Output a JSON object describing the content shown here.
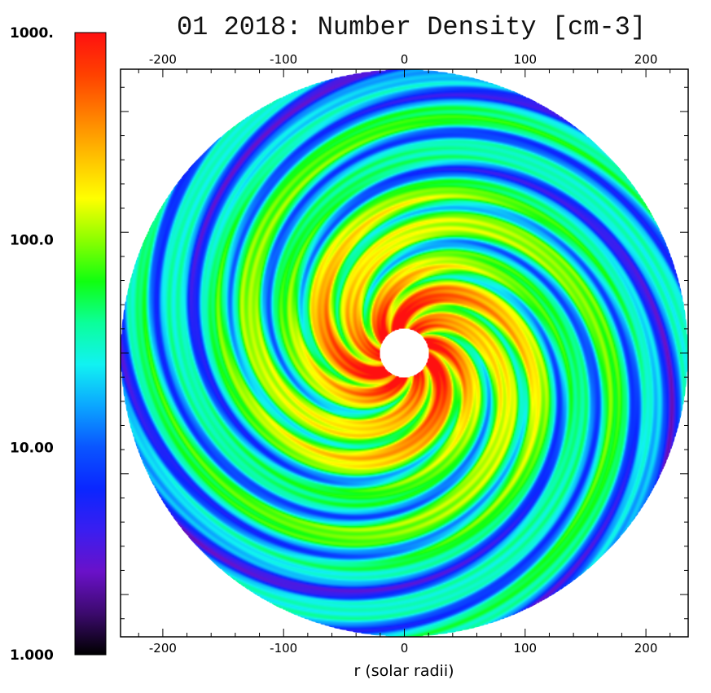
{
  "chart_data": {
    "type": "heatmap",
    "title": "01 2018: Number Density [cm-3]",
    "xlabel": "r (solar radii)",
    "xlim": [
      -235,
      235
    ],
    "ylim": [
      -235,
      235
    ],
    "x_ticks": [
      -200,
      -100,
      0,
      100,
      200
    ],
    "x_tick_labels": [
      "-200",
      "-100",
      "0",
      "100",
      "200"
    ],
    "colorbar": {
      "scale": "log",
      "range": [
        1.0,
        1000.0
      ],
      "tick_values": [
        1000,
        100,
        10,
        1
      ],
      "tick_labels": [
        "1000.",
        "100.0",
        "10.00",
        "1.000"
      ],
      "colormap": [
        "#000000",
        "#3c0a6e",
        "#6a11c9",
        "#3a1ef0",
        "#0a26ff",
        "#0a55ff",
        "#0ba6ff",
        "#11f2f2",
        "#0bff9a",
        "#10ff10",
        "#8cff00",
        "#ffff00",
        "#ffc000",
        "#ff8000",
        "#ff4000",
        "#ff1010"
      ]
    },
    "field": {
      "description_free": true,
      "domain_radius": 235,
      "inner_boundary_radius": 20,
      "spiral_arms": 9,
      "background_level_log10": 0.75
    },
    "grid": false,
    "colors": {
      "masked_region": "#ffffff",
      "frame": "#000000"
    }
  }
}
